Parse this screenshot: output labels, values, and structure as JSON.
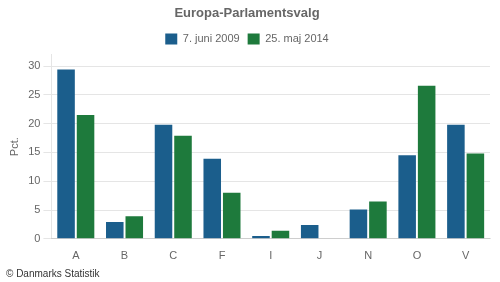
{
  "chart_data": {
    "type": "bar",
    "title": "Europa-Parlamentsvalg",
    "categories": [
      "A",
      "B",
      "C",
      "F",
      "I",
      "J",
      "N",
      "O",
      "V"
    ],
    "series": [
      {
        "name": "7. juni 2009",
        "color": "#1b5e8c",
        "values": [
          29.4,
          2.9,
          19.8,
          13.9,
          0.5,
          2.4,
          5.1,
          14.5,
          19.8
        ]
      },
      {
        "name": "25. maj 2014",
        "color": "#1e7a3c",
        "values": [
          21.5,
          3.9,
          17.9,
          8.0,
          1.4,
          0.0,
          6.5,
          26.6,
          14.8
        ]
      }
    ],
    "ylabel": "Pct.",
    "ylim": [
      0,
      32
    ],
    "yticks": [
      0,
      5,
      10,
      15,
      20,
      25,
      30
    ],
    "grid": true,
    "footer": "© Danmarks Statistik"
  }
}
